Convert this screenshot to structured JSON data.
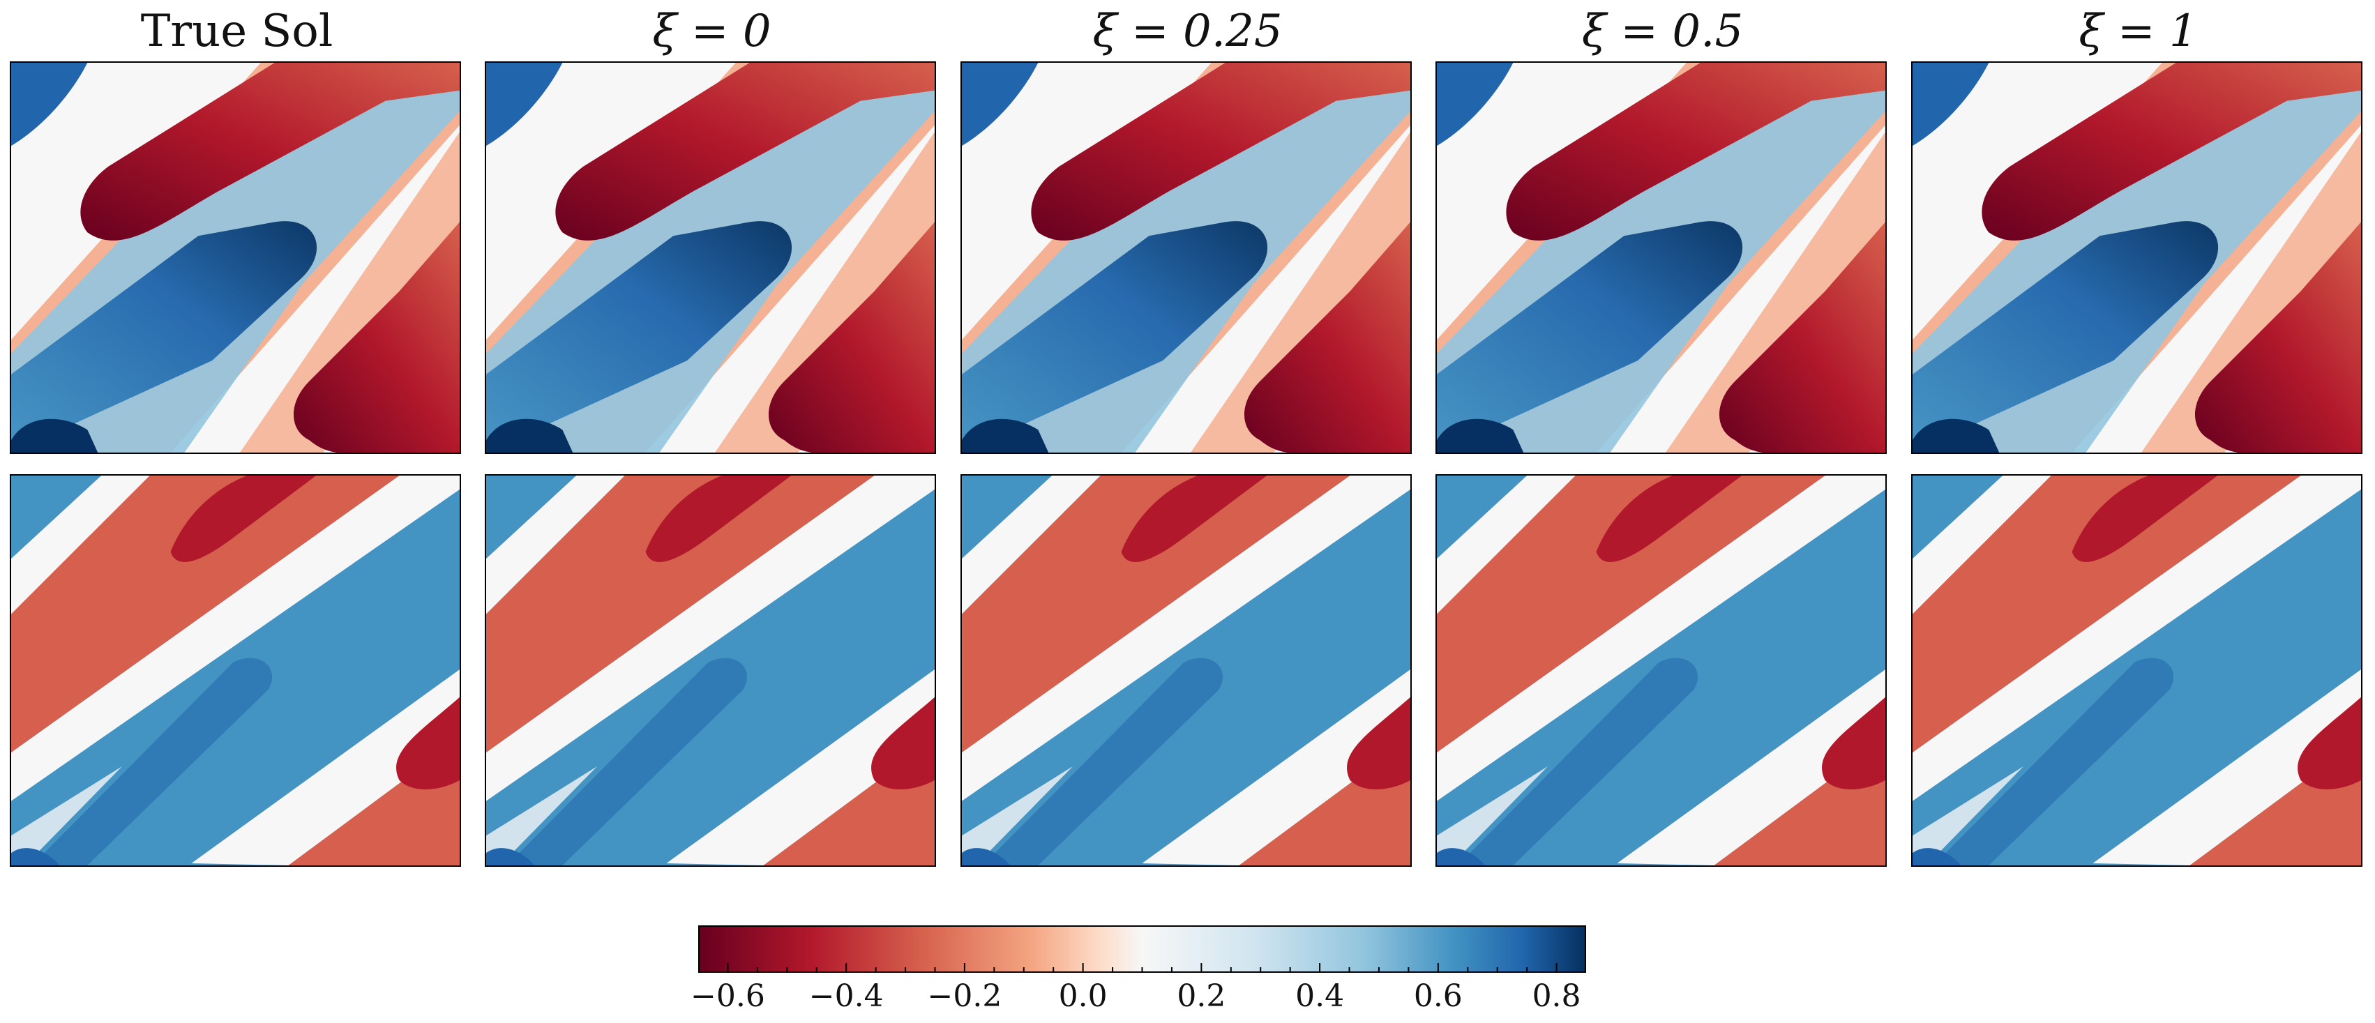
{
  "columns": [
    {
      "key": "true",
      "title": "True Sol"
    },
    {
      "key": "x0",
      "title": "ξ = 0"
    },
    {
      "key": "x025",
      "title": "ξ = 0.25"
    },
    {
      "key": "x05",
      "title": "ξ = 0.5"
    },
    {
      "key": "x1",
      "title": "ξ = 1"
    }
  ],
  "chart_data": {
    "type": "heatmap",
    "rows": 2,
    "cols": 5,
    "colormap": "RdBu",
    "colorbar": {
      "vmin": -0.65,
      "vmax": 0.85,
      "ticks": [
        -0.6,
        -0.4,
        -0.2,
        0.0,
        0.2,
        0.4,
        0.6,
        0.8
      ],
      "tick_labels": [
        "−0.6",
        "−0.4",
        "−0.2",
        "0.0",
        "0.2",
        "0.4",
        "0.6",
        "0.8"
      ],
      "minor_ticks": true
    },
    "colors": {
      "dark_red": "#67001f",
      "red": "#b2182b",
      "salmon": "#d6604d",
      "light_salmon": "#f4a582",
      "pale": "#f7f7f7",
      "light_blue": "#92c5de",
      "blue": "#4393c3",
      "dark_blue": "#2166ac",
      "navy": "#053061"
    }
  }
}
